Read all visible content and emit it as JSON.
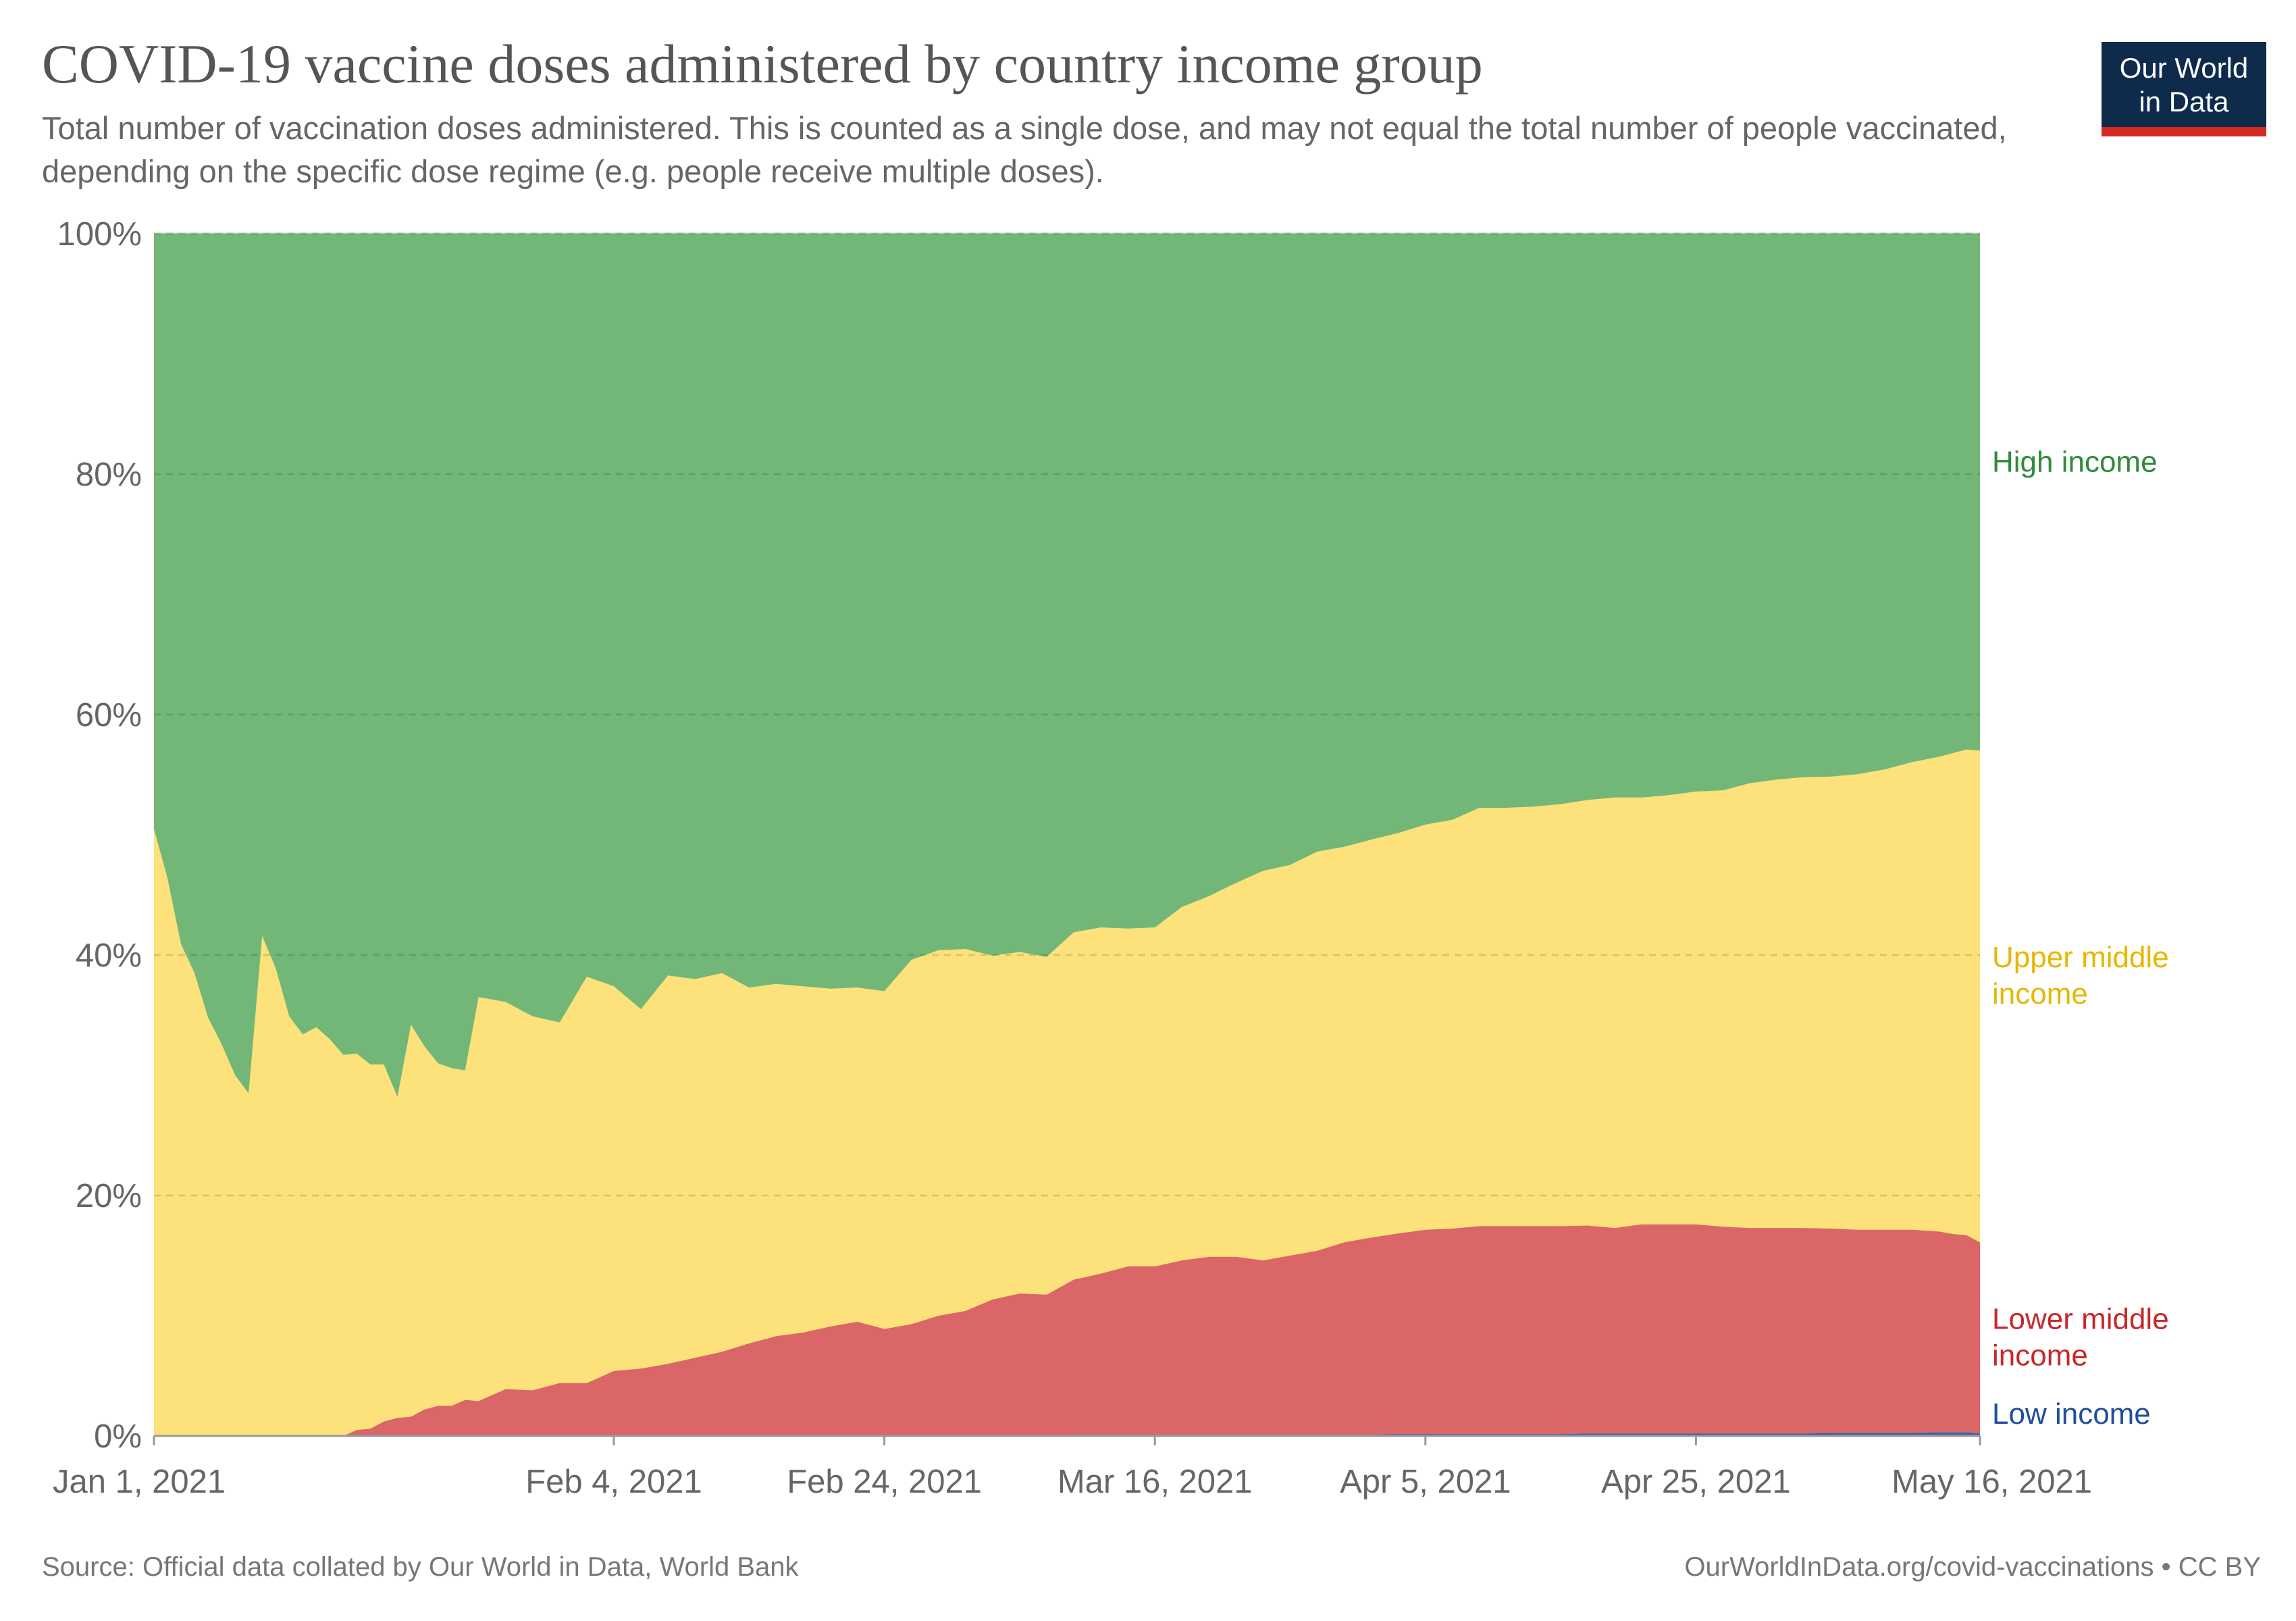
{
  "header": {
    "title": "COVID-19 vaccine doses administered by country income group",
    "subtitle": "Total number of vaccination doses administered. This is counted as a single dose, and may not equal the total number of people vaccinated, depending on the specific dose regime (e.g. people receive multiple doses).",
    "logo_line1": "Our World",
    "logo_line2": "in Data"
  },
  "footer": {
    "source": "Source: Official data collated by Our World in Data, World Bank",
    "license": "OurWorldInData.org/covid-vaccinations • CC BY"
  },
  "colors": {
    "high_income": "#72b777",
    "upper_middle_income": "#fde17a",
    "lower_middle_income": "#da6667",
    "low_income": "#3b62a7",
    "gridline": "#cccccc"
  },
  "chart_data": {
    "type": "area",
    "stacked": true,
    "normalized": true,
    "x_start": "2021-01-01",
    "x_end": "2021-05-16",
    "x_ticks": [
      "Jan 1, 2021",
      "Feb 4, 2021",
      "Feb 24, 2021",
      "Mar 16, 2021",
      "Apr 5, 2021",
      "Apr 25, 2021",
      "May 16, 2021"
    ],
    "x_tick_dates": [
      "2021-01-01",
      "2021-02-04",
      "2021-02-24",
      "2021-03-16",
      "2021-04-05",
      "2021-04-25",
      "2021-05-16"
    ],
    "y_ticks": [
      "0%",
      "20%",
      "40%",
      "60%",
      "80%",
      "100%"
    ],
    "y_tick_values": [
      0,
      20,
      40,
      60,
      80,
      100
    ],
    "ylim": [
      0,
      100
    ],
    "grid": true,
    "legend": "inline-right",
    "dates": [
      "2021-01-01",
      "2021-01-02",
      "2021-01-03",
      "2021-01-04",
      "2021-01-05",
      "2021-01-06",
      "2021-01-07",
      "2021-01-08",
      "2021-01-09",
      "2021-01-10",
      "2021-01-11",
      "2021-01-12",
      "2021-01-13",
      "2021-01-14",
      "2021-01-15",
      "2021-01-16",
      "2021-01-17",
      "2021-01-18",
      "2021-01-19",
      "2021-01-20",
      "2021-01-21",
      "2021-01-22",
      "2021-01-23",
      "2021-01-24",
      "2021-01-25",
      "2021-01-27",
      "2021-01-29",
      "2021-01-31",
      "2021-02-02",
      "2021-02-04",
      "2021-02-06",
      "2021-02-08",
      "2021-02-10",
      "2021-02-12",
      "2021-02-14",
      "2021-02-16",
      "2021-02-18",
      "2021-02-20",
      "2021-02-22",
      "2021-02-24",
      "2021-02-26",
      "2021-02-28",
      "2021-03-02",
      "2021-03-04",
      "2021-03-06",
      "2021-03-08",
      "2021-03-10",
      "2021-03-12",
      "2021-03-14",
      "2021-03-16",
      "2021-03-18",
      "2021-03-20",
      "2021-03-22",
      "2021-03-24",
      "2021-03-26",
      "2021-03-28",
      "2021-03-30",
      "2021-04-01",
      "2021-04-03",
      "2021-04-05",
      "2021-04-07",
      "2021-04-09",
      "2021-04-11",
      "2021-04-13",
      "2021-04-15",
      "2021-04-17",
      "2021-04-19",
      "2021-04-21",
      "2021-04-23",
      "2021-04-25",
      "2021-04-27",
      "2021-04-29",
      "2021-05-01",
      "2021-05-03",
      "2021-05-05",
      "2021-05-07",
      "2021-05-09",
      "2021-05-11",
      "2021-05-13",
      "2021-05-14",
      "2021-05-15",
      "2021-05-16"
    ],
    "series": [
      {
        "name": "Low income",
        "color": "#3b62a7",
        "values": [
          0,
          0,
          0,
          0,
          0,
          0,
          0,
          0,
          0,
          0,
          0,
          0,
          0,
          0,
          0,
          0,
          0,
          0,
          0,
          0,
          0,
          0,
          0,
          0,
          0,
          0,
          0,
          0,
          0,
          0,
          0,
          0,
          0,
          0,
          0,
          0,
          0,
          0,
          0,
          0,
          0,
          0,
          0,
          0.05,
          0.05,
          0.05,
          0.1,
          0.1,
          0.1,
          0.1,
          0.1,
          0.1,
          0.1,
          0.1,
          0.1,
          0.1,
          0.1,
          0.1,
          0.15,
          0.15,
          0.15,
          0.15,
          0.15,
          0.15,
          0.15,
          0.2,
          0.2,
          0.2,
          0.2,
          0.2,
          0.2,
          0.2,
          0.2,
          0.2,
          0.25,
          0.25,
          0.25,
          0.25,
          0.3,
          0.3,
          0.3,
          0.2
        ]
      },
      {
        "name": "Lower middle income",
        "color": "#da6667",
        "values": [
          0,
          0,
          0,
          0,
          0,
          0,
          0,
          0,
          0,
          0,
          0,
          0,
          0,
          0,
          0,
          0.5,
          0.6,
          1.2,
          1.5,
          1.6,
          2.2,
          2.5,
          2.5,
          3.0,
          2.9,
          3.9,
          3.8,
          4.4,
          4.4,
          5.4,
          5.6,
          6.0,
          6.5,
          7.0,
          7.7,
          8.3,
          8.6,
          9.1,
          9.5,
          8.9,
          9.3,
          10.0,
          10.4,
          11.3,
          11.8,
          11.7,
          12.9,
          13.4,
          14.0,
          14.0,
          14.5,
          14.8,
          14.8,
          14.5,
          14.9,
          15.3,
          16.0,
          16.4,
          16.7,
          17.0,
          17.1,
          17.3,
          17.3,
          17.3,
          17.3,
          17.3,
          17.1,
          17.4,
          17.4,
          17.4,
          17.2,
          17.1,
          17.1,
          17.1,
          17.0,
          16.9,
          16.9,
          16.9,
          16.7,
          16.5,
          16.4,
          15.9
        ]
      },
      {
        "name": "Upper middle income",
        "color": "#fde17a",
        "values": [
          50.5,
          46.4,
          40.9,
          38.5,
          34.8,
          32.6,
          30.0,
          28.5,
          41.6,
          38.9,
          34.9,
          33.4,
          34.0,
          33.0,
          31.7,
          31.3,
          30.3,
          29.7,
          26.7,
          32.6,
          30.2,
          28.5,
          28.1,
          27.4,
          33.6,
          32.2,
          31.1,
          30.0,
          33.8,
          32.0,
          29.9,
          32.3,
          31.5,
          31.5,
          29.6,
          29.3,
          28.8,
          28.1,
          27.8,
          28.1,
          30.3,
          30.4,
          30.1,
          28.6,
          28.4,
          28.1,
          28.9,
          28.8,
          28.1,
          28.2,
          29.4,
          30.0,
          31.1,
          32.4,
          32.5,
          33.2,
          32.9,
          33.1,
          33.3,
          33.7,
          34.0,
          34.8,
          34.8,
          34.9,
          35.1,
          35.4,
          35.8,
          35.5,
          35.7,
          36.0,
          36.3,
          37.0,
          37.3,
          37.5,
          37.6,
          37.9,
          38.3,
          38.9,
          39.5,
          40.0,
          40.4,
          40.9
        ]
      },
      {
        "name": "High income",
        "color": "#72b777",
        "values": [
          49.5,
          53.6,
          59.1,
          61.5,
          65.2,
          67.4,
          70.0,
          71.5,
          58.4,
          61.1,
          65.1,
          66.6,
          66.0,
          67.0,
          68.3,
          68.2,
          69.1,
          69.1,
          71.8,
          65.8,
          67.6,
          69.0,
          69.4,
          69.6,
          63.5,
          63.9,
          65.1,
          65.6,
          61.8,
          62.6,
          64.5,
          61.7,
          62.0,
          61.5,
          62.7,
          62.4,
          62.6,
          62.8,
          62.7,
          63.0,
          60.4,
          59.6,
          59.5,
          60.05,
          59.75,
          60.15,
          58.1,
          57.7,
          57.8,
          57.7,
          56.0,
          55.1,
          54.0,
          53.0,
          52.5,
          51.4,
          51.0,
          50.4,
          49.85,
          49.15,
          48.75,
          47.75,
          47.75,
          47.65,
          47.45,
          47.1,
          46.9,
          46.9,
          46.7,
          46.4,
          46.3,
          45.7,
          45.4,
          45.2,
          45.15,
          44.95,
          44.55,
          43.95,
          43.5,
          43.2,
          42.9,
          43.0
        ]
      }
    ],
    "series_labels": [
      {
        "key": "High income",
        "line1": "High income",
        "line2": "",
        "color": "#2e8b3a",
        "at": 80.2
      },
      {
        "key": "Upper middle income",
        "line1": "Upper middle",
        "line2": "income",
        "color": "#e6b800",
        "at": 39.0
      },
      {
        "key": "Lower middle income",
        "line1": "Lower middle",
        "line2": "income",
        "color": "#c9282a",
        "at": 8.9
      },
      {
        "key": "Low income",
        "line1": "Low income",
        "line2": "",
        "color": "#1f4e9c",
        "at": 1.0
      }
    ]
  }
}
